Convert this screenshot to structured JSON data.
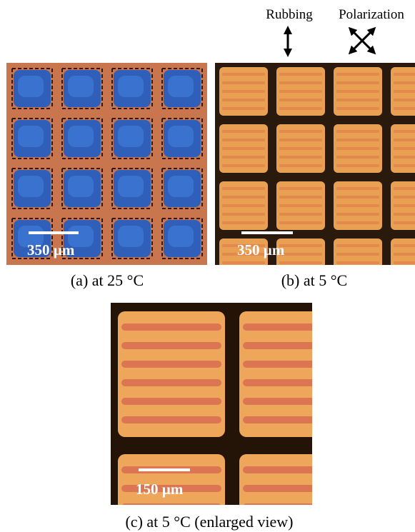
{
  "header": {
    "rubbing": "Rubbing",
    "polarization": "Polarization"
  },
  "panels": [
    {
      "scale_bar": "350 µm",
      "caption": "(a) at 25 °C"
    },
    {
      "scale_bar": "350 µm",
      "caption": "(b) at 5 °C"
    },
    {
      "scale_bar": "150 µm",
      "caption": "(c) at 5 °C (enlarged view)"
    }
  ]
}
